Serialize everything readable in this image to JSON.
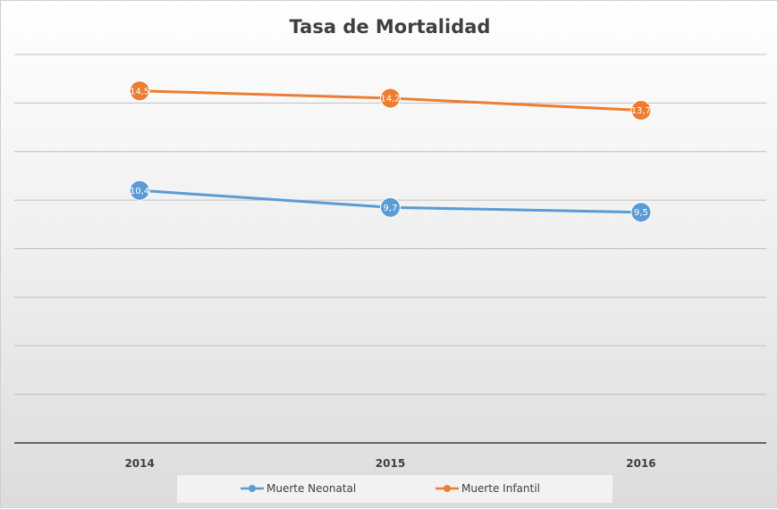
{
  "chart_data": {
    "type": "line",
    "title": "Tasa de Mortalidad",
    "categories": [
      "2014",
      "2015",
      "2016"
    ],
    "series": [
      {
        "name": "Muerte Neonatal",
        "values": [
          10.4,
          9.7,
          9.5
        ],
        "labels": [
          "10,4",
          "9,7",
          "9,5"
        ],
        "color": "#5b9bd5"
      },
      {
        "name": "Muerte Infantil",
        "values": [
          14.5,
          14.2,
          13.7
        ],
        "labels": [
          "14,5",
          "14,2",
          "13,7"
        ],
        "color": "#ed7d31"
      }
    ],
    "ylim": [
      0,
      16
    ],
    "y_gridline_step": 2,
    "y_axis_labels_shown": false,
    "grid": true,
    "legend_position": "bottom",
    "colors": {
      "gridline": "#bfbfbf",
      "axis": "#404040",
      "legend_bg": "#f2f2f2"
    }
  }
}
